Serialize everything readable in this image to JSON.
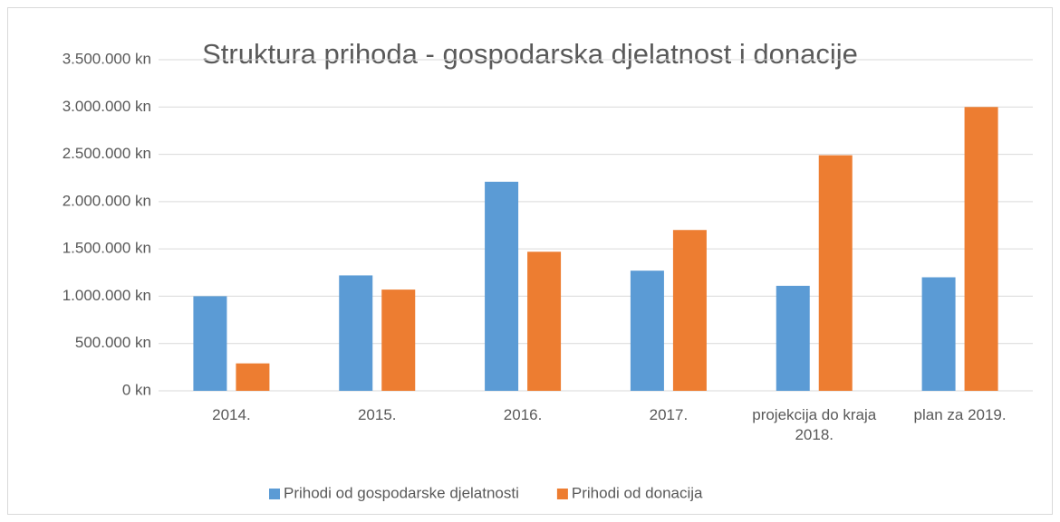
{
  "chart_data": {
    "type": "bar",
    "title": "Struktura prihoda - gospodarska djelatnost i donacije",
    "categories": [
      "2014.",
      "2015.",
      "2016.",
      "2017.",
      "projekcija do kraja 2018.",
      "plan za 2019."
    ],
    "series": [
      {
        "name": "Prihodi od gospodarske djelatnosti",
        "color": "#5b9bd5",
        "values": [
          1000000,
          1220000,
          2210000,
          1270000,
          1110000,
          1200000
        ]
      },
      {
        "name": "Prihodi od donacija",
        "color": "#ed7d31",
        "values": [
          290000,
          1070000,
          1470000,
          1700000,
          2490000,
          3000000
        ]
      }
    ],
    "ylim": [
      0,
      3500000
    ],
    "yticks": [
      {
        "value": 0,
        "label": "0 kn"
      },
      {
        "value": 500000,
        "label": "500.000 kn"
      },
      {
        "value": 1000000,
        "label": "1.000.000 kn"
      },
      {
        "value": 1500000,
        "label": "1.500.000 kn"
      },
      {
        "value": 2000000,
        "label": "2.000.000 kn"
      },
      {
        "value": 2500000,
        "label": "2.500.000 kn"
      },
      {
        "value": 3000000,
        "label": "3.000.000 kn"
      },
      {
        "value": 3500000,
        "label": "3.500.000 kn"
      }
    ],
    "grid": true,
    "legend": "bottom"
  }
}
